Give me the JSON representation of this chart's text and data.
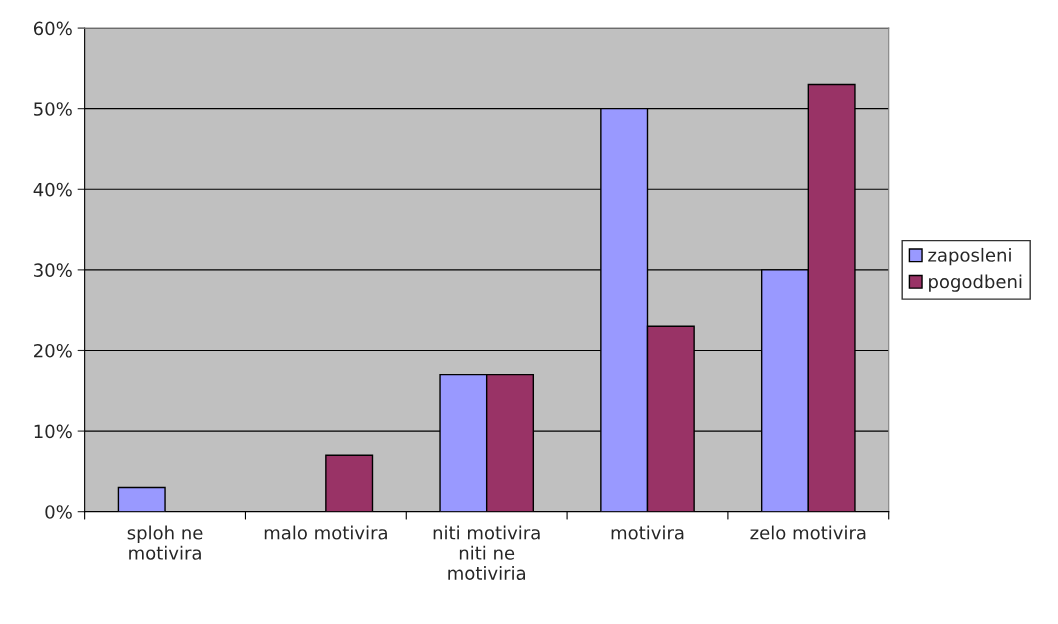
{
  "chart_data": {
    "type": "bar",
    "categories": [
      "sploh ne motivira",
      "malo motivira",
      "niti motivira niti ne motiviria",
      "motivira",
      "zelo motivira"
    ],
    "series": [
      {
        "name": "zaposleni",
        "color": "#9999ff",
        "values": [
          3,
          null,
          17,
          50,
          30
        ]
      },
      {
        "name": "pogodbeni",
        "color": "#993366",
        "values": [
          null,
          7,
          17,
          23,
          53
        ]
      }
    ],
    "ylim": [
      0,
      60
    ],
    "yticks": [
      {
        "value": 0,
        "label": "0%"
      },
      {
        "value": 10,
        "label": "10%"
      },
      {
        "value": 20,
        "label": "20%"
      },
      {
        "value": 30,
        "label": "30%"
      },
      {
        "value": 40,
        "label": "40%"
      },
      {
        "value": 50,
        "label": "50%"
      },
      {
        "value": 60,
        "label": "60%"
      }
    ],
    "grid": "y",
    "legend": "right"
  }
}
